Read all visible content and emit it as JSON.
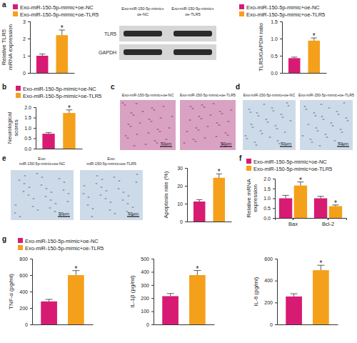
{
  "chart_data": [
    {
      "type": "bar",
      "y_label": "Relative TLR5 mRNA expression",
      "categories": [
        null
      ],
      "ylim": [
        0,
        3
      ],
      "yticks": [
        0,
        1,
        2,
        3
      ],
      "legend": "top",
      "series": [
        {
          "name": "Exo-miR-150-5p-mimic+oe-NC",
          "color": "#d81b72",
          "values": [
            1.0
          ],
          "errors": [
            0.1
          ]
        },
        {
          "name": "Exo-miR-150-5p-mimic+oe-TLR5",
          "color": "#f5a01a",
          "values": [
            2.2
          ],
          "errors": [
            0.3
          ],
          "significance": [
            "*"
          ]
        }
      ]
    },
    {
      "type": "bar",
      "y_label": "TLR5/GAPDH ratio",
      "categories": [
        null
      ],
      "ylim": [
        0,
        1.5
      ],
      "yticks": [
        {
          "value": 0,
          "label": "0.0"
        },
        {
          "value": 0.5,
          "label": "0.5"
        },
        {
          "value": 1.0,
          "label": "1.0"
        },
        {
          "value": 1.5,
          "label": "1.5"
        }
      ],
      "legend": "top",
      "series": [
        {
          "name": "Exo-miR-150-5p-mimic+oe-NC",
          "color": "#d81b72",
          "values": [
            0.43
          ],
          "errors": [
            0.03
          ]
        },
        {
          "name": "Exo-miR-150-5p-mimic+oe-TLR5",
          "color": "#f5a01a",
          "values": [
            0.94
          ],
          "errors": [
            0.08
          ],
          "significance": [
            "*"
          ]
        }
      ]
    },
    {
      "type": "bar",
      "y_label": "Neurological scores",
      "categories": [
        null
      ],
      "ylim": [
        0,
        2.0
      ],
      "yticks": [
        {
          "value": 0,
          "label": "0.0"
        },
        {
          "value": 0.5,
          "label": "0.5"
        },
        {
          "value": 1.0,
          "label": "1.0"
        },
        {
          "value": 1.5,
          "label": "1.5"
        },
        {
          "value": 2.0,
          "label": "2.0"
        }
      ],
      "legend": "top",
      "series": [
        {
          "name": "Exo-miR-150-5p-mimic+oe-NC",
          "color": "#d81b72",
          "values": [
            0.72
          ],
          "errors": [
            0.06
          ]
        },
        {
          "name": "Exo-miR-150-5p-mimic+oe-TLR5",
          "color": "#f5a01a",
          "values": [
            1.72
          ],
          "errors": [
            0.15
          ],
          "significance": [
            "*"
          ]
        }
      ]
    },
    {
      "type": "bar",
      "y_label": "Apoptosis rate (%)",
      "categories": [
        null
      ],
      "ylim": [
        0,
        30
      ],
      "yticks": [
        0,
        10,
        20,
        30
      ],
      "series": [
        {
          "color": "#d81b72",
          "values": [
            11.2
          ],
          "errors": [
            1.0
          ]
        },
        {
          "color": "#f5a01a",
          "values": [
            24.5
          ],
          "errors": [
            2.2
          ],
          "significance": [
            "*"
          ]
        }
      ]
    },
    {
      "type": "bar",
      "y_label": "Relative mRNA expression",
      "categories": [
        "Bax",
        "Bcl-2"
      ],
      "ylim": [
        0,
        2.0
      ],
      "yticks": [
        {
          "value": 0,
          "label": "0.0"
        },
        {
          "value": 0.5,
          "label": "0.5"
        },
        {
          "value": 1.0,
          "label": "1.0"
        },
        {
          "value": 1.5,
          "label": "1.5"
        },
        {
          "value": 2.0,
          "label": "2.0"
        }
      ],
      "legend": "top",
      "series": [
        {
          "name": "Exo-miR-150-5p-mimic+oe-NC",
          "color": "#d81b72",
          "values": [
            1.0,
            1.0
          ],
          "errors": [
            0.15,
            0.1
          ]
        },
        {
          "name": "Exo-miR-150-5p-mimic+oe-TLR5",
          "color": "#f5a01a",
          "values": [
            1.65,
            0.6
          ],
          "errors": [
            0.18,
            0.06
          ],
          "significance": [
            "*",
            "*"
          ]
        }
      ]
    },
    {
      "type": "bar",
      "y_label": "TNF-α (pg/ml)",
      "categories": [
        null
      ],
      "ylim": [
        0,
        800
      ],
      "yticks": [
        0,
        200,
        400,
        600,
        800
      ],
      "legend": "top",
      "series": [
        {
          "name": "Exo-miR-150-5p-mimic+oe-NC",
          "color": "#d81b72",
          "values": [
            280
          ],
          "errors": [
            25
          ]
        },
        {
          "name": "Exo-miR-150-5p-mimic+oe-TLR5",
          "color": "#f5a01a",
          "values": [
            600
          ],
          "errors": [
            55
          ],
          "significance": [
            "*"
          ]
        }
      ]
    },
    {
      "type": "bar",
      "y_label": "IL-1β (pg/ml)",
      "categories": [
        null
      ],
      "ylim": [
        0,
        500
      ],
      "yticks": [
        0,
        100,
        200,
        300,
        400,
        500
      ],
      "series": [
        {
          "color": "#d81b72",
          "values": [
            215
          ],
          "errors": [
            20
          ]
        },
        {
          "color": "#f5a01a",
          "values": [
            375
          ],
          "errors": [
            35
          ],
          "significance": [
            "*"
          ]
        }
      ]
    },
    {
      "type": "bar",
      "y_label": "IL-6 (pg/ml)",
      "categories": [
        null
      ],
      "ylim": [
        0,
        600
      ],
      "yticks": [
        0,
        200,
        400,
        600
      ],
      "series": [
        {
          "color": "#d81b72",
          "values": [
            255
          ],
          "errors": [
            25
          ]
        },
        {
          "color": "#f5a01a",
          "values": [
            495
          ],
          "errors": [
            45
          ],
          "significance": [
            "*"
          ]
        }
      ]
    }
  ],
  "figure": {
    "panel_labels": [
      "a",
      "b",
      "c",
      "d",
      "e",
      "f",
      "g"
    ],
    "blot": {
      "lanes": [
        [
          "Exo-miR-150-5p-mimic+",
          "oe-NC"
        ],
        [
          "Exo-miR-150-5p-mimic+",
          "oe-TLR5"
        ]
      ],
      "bands": [
        "TLR5",
        "GAPDH"
      ]
    },
    "micrographs": [
      {
        "labels": [
          [
            "Exo-miR-150-5p-mimic+oe-NC"
          ],
          [
            "Exo-miR-150-5p-mimic+oe-TLR5"
          ]
        ],
        "scale_bar": "50μm"
      },
      {
        "labels": [
          [
            "Exo-miR-150-5p-mimic+oe-NC"
          ],
          [
            "Exo-miR-150-5p-mimic+oe-TLR5"
          ]
        ],
        "scale_bar": "50μm"
      },
      {
        "labels": [
          [
            "Exo-",
            "miR-150-5p-mimic+oe-NC"
          ],
          [
            "Exo-",
            "miR-150-5p-mimic+oe-TLR5"
          ]
        ],
        "scale_bar": "50μm"
      }
    ]
  }
}
